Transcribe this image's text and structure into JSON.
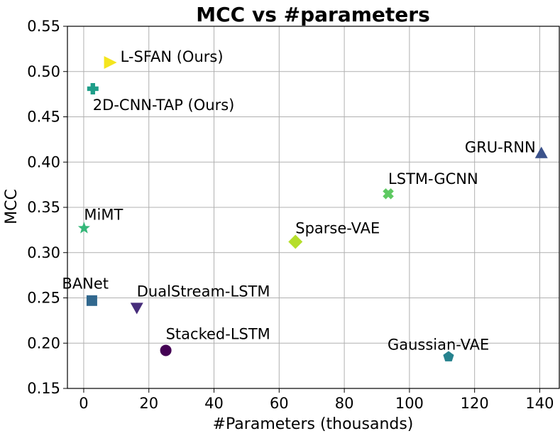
{
  "chart_data": {
    "type": "scatter",
    "title": "MCC vs #parameters",
    "xlabel": "#Parameters (thousands)",
    "ylabel": "MCC",
    "xlim": [
      -5,
      146
    ],
    "ylim": [
      0.15,
      0.55
    ],
    "xticks": [
      0,
      20,
      40,
      60,
      80,
      100,
      120,
      140
    ],
    "yticks": [
      0.15,
      0.2,
      0.25,
      0.3,
      0.35,
      0.4,
      0.45,
      0.5,
      0.55
    ],
    "grid": true,
    "points": [
      {
        "label": "L-SFAN (Ours)",
        "x": 8.2,
        "y": 0.51,
        "marker": "triangle-right",
        "color": "#f4e51e"
      },
      {
        "label": "2D-CNN-TAP (Ours)",
        "x": 2.8,
        "y": 0.481,
        "marker": "plus",
        "color": "#1f9e89"
      },
      {
        "label": "GRU-RNN",
        "x": 140.5,
        "y": 0.41,
        "marker": "triangle-up",
        "color": "#3b528b"
      },
      {
        "label": "LSTM-GCNN",
        "x": 93.5,
        "y": 0.365,
        "marker": "x",
        "color": "#5ec962"
      },
      {
        "label": "MiMT",
        "x": 0.1,
        "y": 0.327,
        "marker": "star",
        "color": "#35b779"
      },
      {
        "label": "Sparse-VAE",
        "x": 65.0,
        "y": 0.312,
        "marker": "diamond",
        "color": "#b5de2b"
      },
      {
        "label": "BANet",
        "x": 2.5,
        "y": 0.247,
        "marker": "square",
        "color": "#31688e"
      },
      {
        "label": "DualStream-LSTM",
        "x": 16.3,
        "y": 0.239,
        "marker": "triangle-down",
        "color": "#472d7b"
      },
      {
        "label": "Stacked-LSTM",
        "x": 25.2,
        "y": 0.192,
        "marker": "circle",
        "color": "#440154"
      },
      {
        "label": "Gaussian-VAE",
        "x": 112.0,
        "y": 0.185,
        "marker": "pentagon",
        "color": "#26828e"
      }
    ]
  }
}
